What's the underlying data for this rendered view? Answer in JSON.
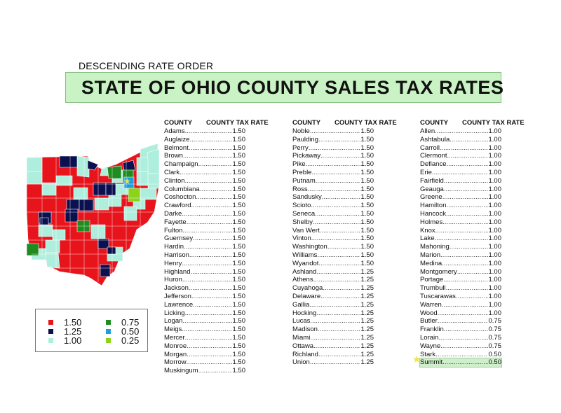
{
  "header": {
    "subtitle": "DESCENDING RATE ORDER",
    "title": "STATE OF OHIO COUNTY SALES TAX RATES"
  },
  "table": {
    "col_county": "COUNTY",
    "col_rate": "COUNTY TAX RATE",
    "columns": [
      [
        {
          "county": "Adams",
          "rate": "1.50"
        },
        {
          "county": "Auglaize",
          "rate": "1.50"
        },
        {
          "county": "Belmont",
          "rate": "1.50"
        },
        {
          "county": "Brown",
          "rate": "1.50"
        },
        {
          "county": "Champaign",
          "rate": "1.50"
        },
        {
          "county": "Clark",
          "rate": "1.50"
        },
        {
          "county": "Clinton",
          "rate": "1.50"
        },
        {
          "county": "Columbiana",
          "rate": "1.50"
        },
        {
          "county": "Coshocton",
          "rate": "1.50"
        },
        {
          "county": "Crawford",
          "rate": "1.50"
        },
        {
          "county": "Darke",
          "rate": "1.50"
        },
        {
          "county": "Fayette",
          "rate": "1.50"
        },
        {
          "county": "Fulton",
          "rate": "1.50"
        },
        {
          "county": "Guernsey",
          "rate": "1.50"
        },
        {
          "county": "Hardin",
          "rate": "1.50"
        },
        {
          "county": "Harrison",
          "rate": "1.50"
        },
        {
          "county": "Henry",
          "rate": "1.50"
        },
        {
          "county": "Highland",
          "rate": "1.50"
        },
        {
          "county": "Huron",
          "rate": "1.50"
        },
        {
          "county": "Jackson",
          "rate": "1.50"
        },
        {
          "county": "Jefferson",
          "rate": "1.50"
        },
        {
          "county": "Lawrence",
          "rate": "1.50"
        },
        {
          "county": "Licking",
          "rate": "1.50"
        },
        {
          "county": "Logan",
          "rate": "1.50"
        },
        {
          "county": "Meigs",
          "rate": "1.50"
        },
        {
          "county": "Mercer",
          "rate": "1.50"
        },
        {
          "county": "Monroe",
          "rate": "1.50"
        },
        {
          "county": "Morgan",
          "rate": "1.50"
        },
        {
          "county": "Morrow",
          "rate": "1.50"
        },
        {
          "county": "Muskingum",
          "rate": "1.50"
        }
      ],
      [
        {
          "county": "Noble",
          "rate": "1.50"
        },
        {
          "county": "Paulding",
          "rate": "1.50"
        },
        {
          "county": "Perry",
          "rate": "1.50"
        },
        {
          "county": "Pickaway",
          "rate": "1.50"
        },
        {
          "county": "Pike",
          "rate": "1.50"
        },
        {
          "county": "Preble",
          "rate": "1.50"
        },
        {
          "county": "Putnam",
          "rate": "1.50"
        },
        {
          "county": "Ross",
          "rate": "1.50"
        },
        {
          "county": "Sandusky",
          "rate": "1.50"
        },
        {
          "county": "Scioto",
          "rate": "1.50"
        },
        {
          "county": "Seneca",
          "rate": "1.50"
        },
        {
          "county": "Shelby",
          "rate": "1.50"
        },
        {
          "county": "Van Wert",
          "rate": "1.50"
        },
        {
          "county": "Vinton",
          "rate": "1.50"
        },
        {
          "county": "Washington",
          "rate": "1.50"
        },
        {
          "county": "Williams",
          "rate": "1.50"
        },
        {
          "county": "Wyandot",
          "rate": "1.50"
        },
        {
          "county": "Ashland",
          "rate": "1.25"
        },
        {
          "county": "Athens",
          "rate": "1.25"
        },
        {
          "county": "Cuyahoga",
          "rate": "1.25"
        },
        {
          "county": "Delaware",
          "rate": "1.25"
        },
        {
          "county": "Gallia",
          "rate": "1.25"
        },
        {
          "county": "Hocking",
          "rate": "1.25"
        },
        {
          "county": "Lucas",
          "rate": "1.25"
        },
        {
          "county": "Madison",
          "rate": "1.25"
        },
        {
          "county": "Miami",
          "rate": "1.25"
        },
        {
          "county": "Ottawa",
          "rate": "1.25"
        },
        {
          "county": "Richland",
          "rate": "1.25"
        },
        {
          "county": "Union",
          "rate": "1.25"
        }
      ],
      [
        {
          "county": "Allen",
          "rate": "1.00"
        },
        {
          "county": "Ashtabula",
          "rate": "1.00"
        },
        {
          "county": "Carroll",
          "rate": "1.00"
        },
        {
          "county": "Clermont",
          "rate": "1.00"
        },
        {
          "county": "Defiance",
          "rate": "1.00"
        },
        {
          "county": "Erie",
          "rate": "1.00"
        },
        {
          "county": "Fairfield",
          "rate": "1.00"
        },
        {
          "county": "Geauga",
          "rate": "1.00"
        },
        {
          "county": "Greene",
          "rate": "1.00"
        },
        {
          "county": "Hamilton",
          "rate": "1.00"
        },
        {
          "county": "Hancock",
          "rate": "1.00"
        },
        {
          "county": "Holmes",
          "rate": "1.00"
        },
        {
          "county": "Knox",
          "rate": "1.00"
        },
        {
          "county": "Lake",
          "rate": "1.00"
        },
        {
          "county": "Mahoning",
          "rate": "1.00"
        },
        {
          "county": "Marion",
          "rate": "1.00"
        },
        {
          "county": "Medina",
          "rate": "1.00"
        },
        {
          "county": "Montgomery",
          "rate": "1.00"
        },
        {
          "county": "Portage",
          "rate": "1.00"
        },
        {
          "county": "Trumbull",
          "rate": "1.00"
        },
        {
          "county": "Tuscarawas",
          "rate": "1.00"
        },
        {
          "county": "Warren",
          "rate": "1.00"
        },
        {
          "county": "Wood",
          "rate": "1.00"
        },
        {
          "county": "Butler",
          "rate": "0.75"
        },
        {
          "county": "Franklin",
          "rate": "0.75"
        },
        {
          "county": "Lorain",
          "rate": "0.75"
        },
        {
          "county": "Wayne",
          "rate": "0.75"
        },
        {
          "county": "Stark",
          "rate": "0.50"
        },
        {
          "county": "Summit",
          "rate": "0.50",
          "highlight": true
        }
      ]
    ]
  },
  "legend": {
    "items": [
      {
        "label": "1.50",
        "color": "#e8141b"
      },
      {
        "label": "1.25",
        "color": "#0b1050"
      },
      {
        "label": "1.00",
        "color": "#aeeedd"
      },
      {
        "label": "0.75",
        "color": "#1e8c1e"
      },
      {
        "label": "0.50",
        "color": "#1aa0e0"
      },
      {
        "label": "0.25",
        "color": "#8bd41a"
      }
    ]
  },
  "map": {
    "icon": "ohio-county-map",
    "marker_icon": "star-icon",
    "colors": {
      "r150": "#e8141b",
      "r125": "#0b1050",
      "r100": "#aeeedd",
      "r075": "#1e8c1e",
      "r050": "#1aa0e0",
      "r025": "#8bd41a",
      "star": "#f1e34a"
    }
  }
}
